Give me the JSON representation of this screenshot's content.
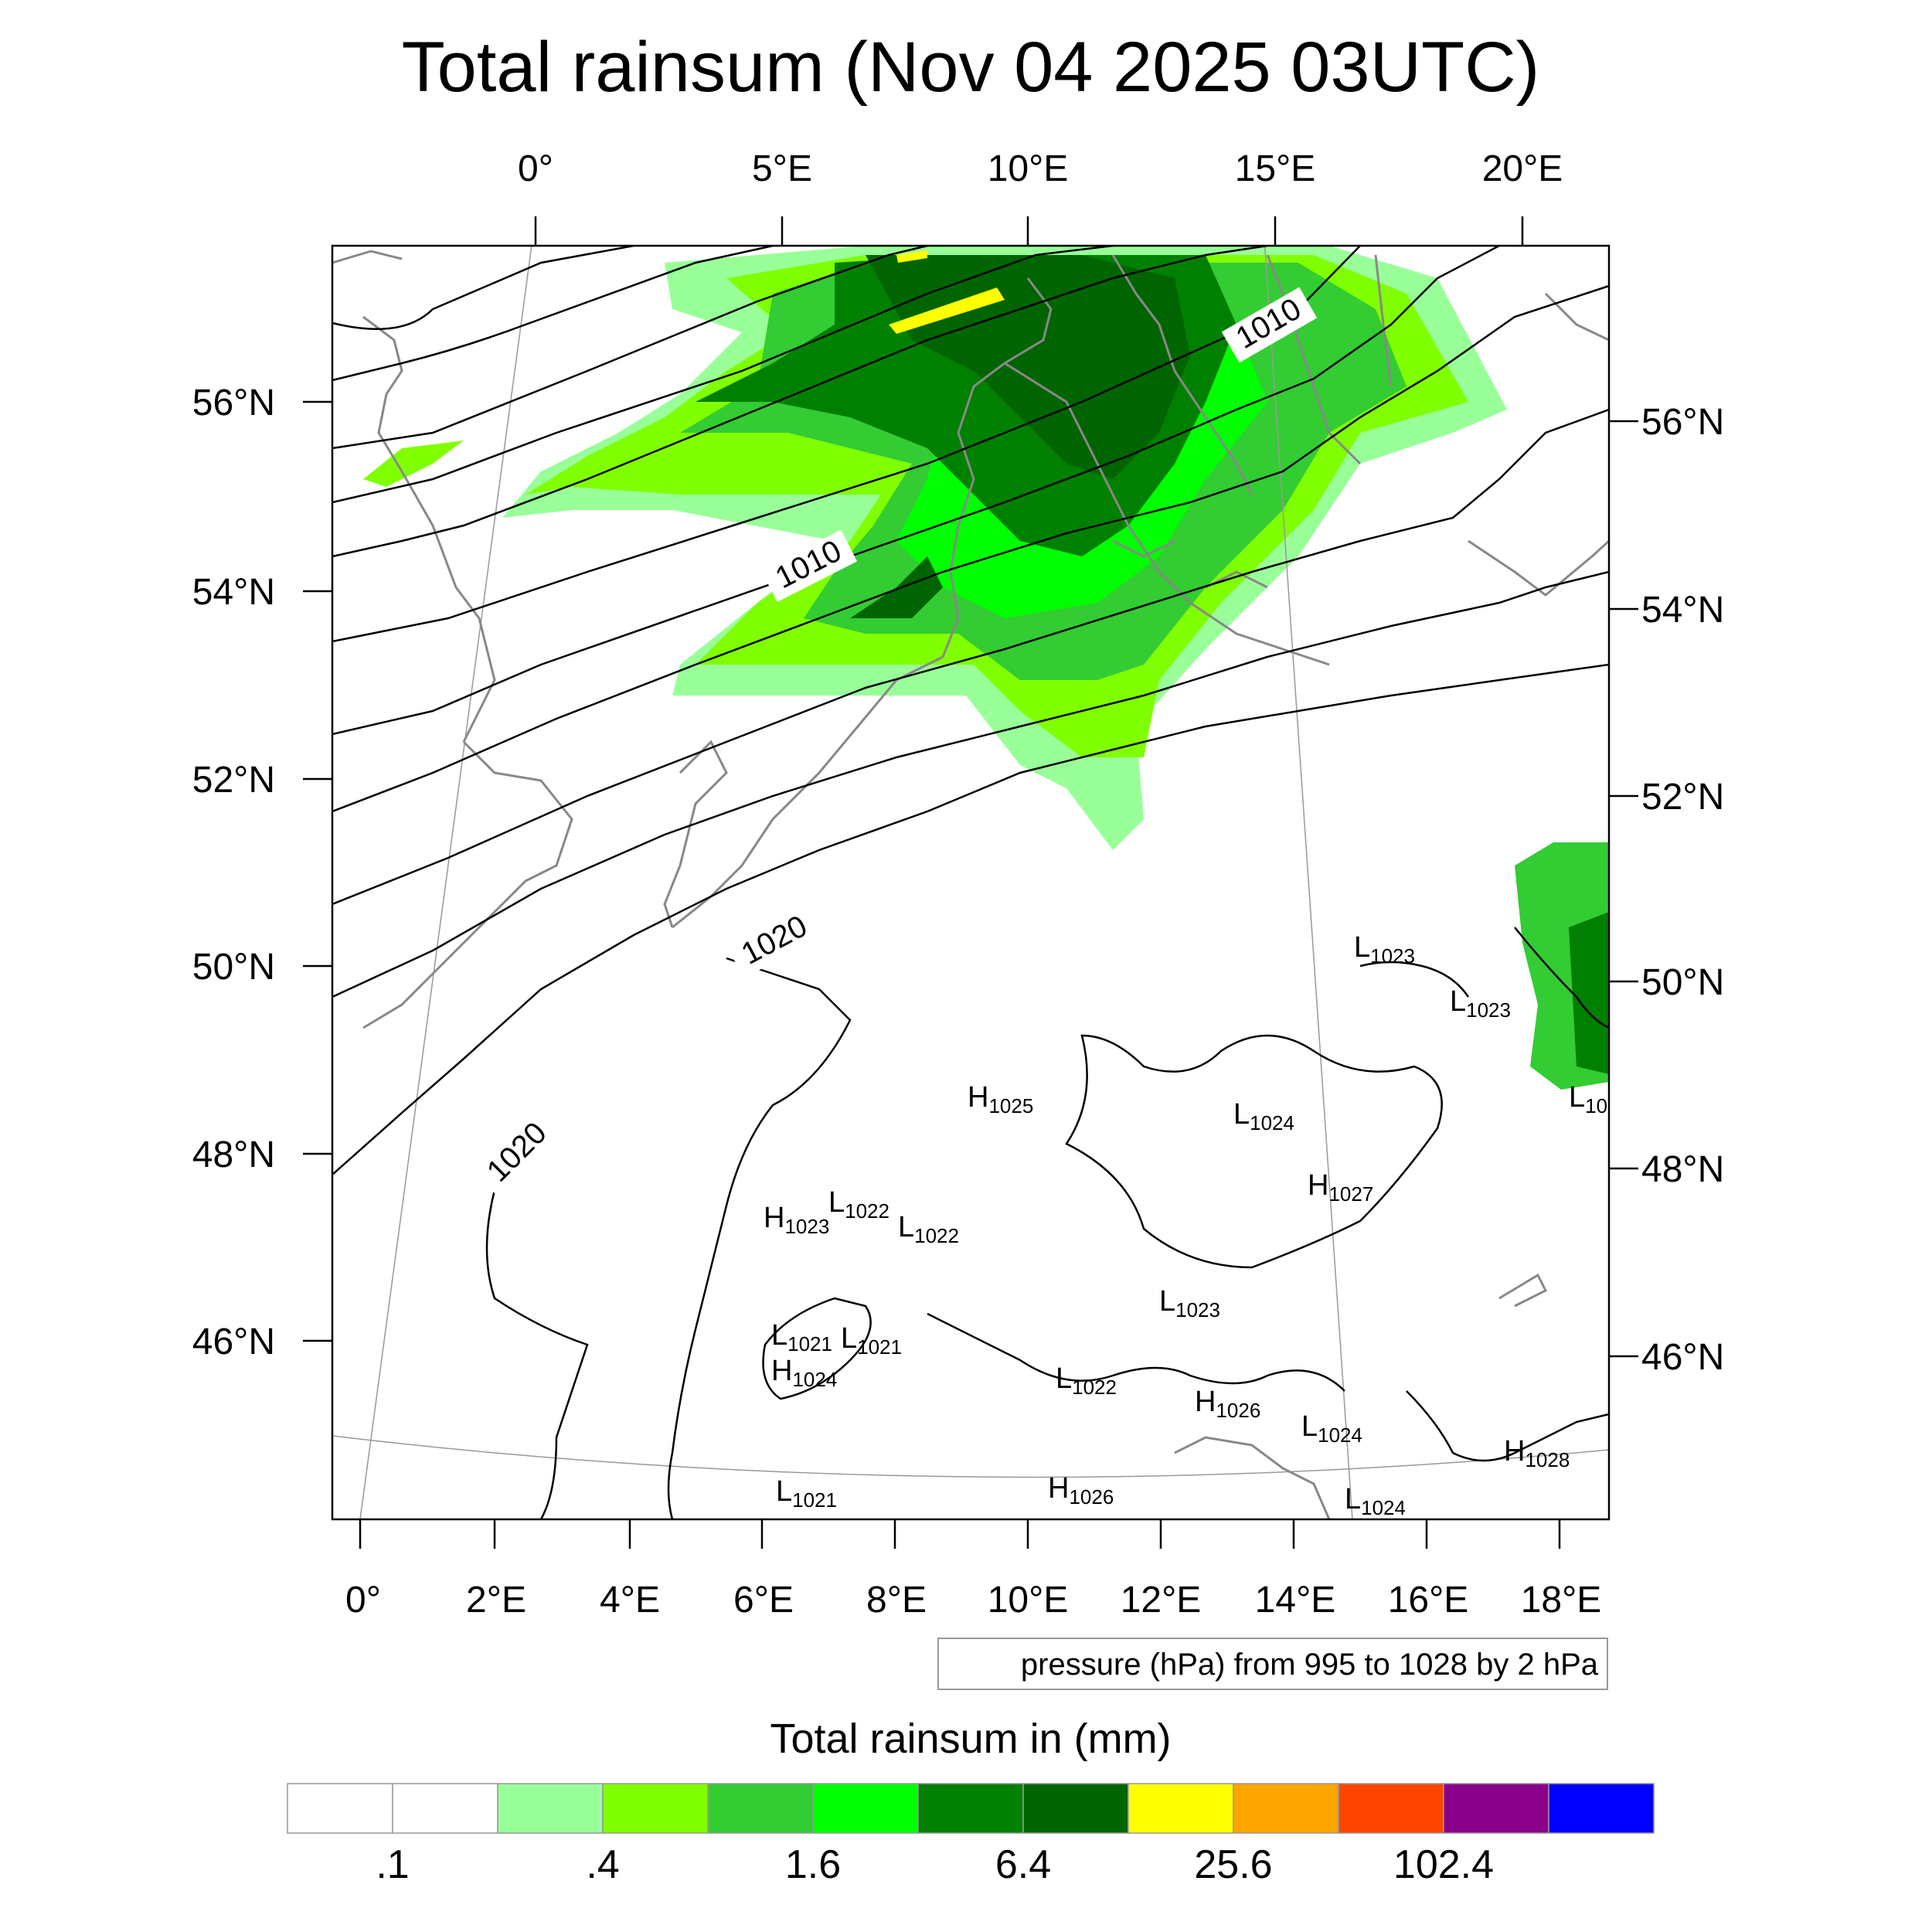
{
  "title": "Total rainsum (Nov 04 2025 03UTC)",
  "map": {
    "top_lon_labels": [
      "0°",
      "5°E",
      "10°E",
      "15°E",
      "20°E"
    ],
    "bottom_lon_labels": [
      "0°",
      "2°E",
      "4°E",
      "6°E",
      "8°E",
      "10°E",
      "12°E",
      "14°E",
      "16°E",
      "18°E"
    ],
    "left_lat_labels": [
      "56°N",
      "54°N",
      "52°N",
      "50°N",
      "48°N",
      "46°N"
    ],
    "right_lat_labels": [
      "56°N",
      "54°N",
      "52°N",
      "50°N",
      "48°N",
      "46°N"
    ],
    "contour_labels": [
      "1010",
      "1010",
      "1020",
      "1020"
    ],
    "pressure_centers": [
      {
        "type": "L",
        "value": "1023"
      },
      {
        "type": "L",
        "value": "1023"
      },
      {
        "type": "L",
        "value": "10"
      },
      {
        "type": "H",
        "value": "1025"
      },
      {
        "type": "L",
        "value": "1024"
      },
      {
        "type": "H",
        "value": "1027"
      },
      {
        "type": "H",
        "value": "1023"
      },
      {
        "type": "L",
        "value": "1022"
      },
      {
        "type": "L",
        "value": "1022"
      },
      {
        "type": "L",
        "value": "1023"
      },
      {
        "type": "L",
        "value": "1021"
      },
      {
        "type": "L",
        "value": "1021"
      },
      {
        "type": "H",
        "value": "1024"
      },
      {
        "type": "L",
        "value": "1022"
      },
      {
        "type": "H",
        "value": "1026"
      },
      {
        "type": "L",
        "value": "1024"
      },
      {
        "type": "H",
        "value": "1028"
      },
      {
        "type": "L",
        "value": "1021"
      },
      {
        "type": "H",
        "value": "1026"
      },
      {
        "type": "L",
        "value": "1024"
      }
    ],
    "info_box": "pressure (hPa) from 995 to 1028 by 2 hPa",
    "colors": {
      "coast": "#888888",
      "contour": "#000000",
      "rain": [
        "#ffffff",
        "#ffffff",
        "#99ff99",
        "#80ff00",
        "#33cc33",
        "#00ff00",
        "#008000",
        "#006400",
        "#ffff00",
        "#ffa500",
        "#ff4500",
        "#8b008b",
        "#0000ff"
      ]
    }
  },
  "colorbar": {
    "title": "Total rainsum in (mm)",
    "labels": [
      ".1",
      ".4",
      "1.6",
      "6.4",
      "25.6",
      "102.4"
    ],
    "colors": [
      "#ffffff",
      "#ffffff",
      "#99ff99",
      "#80ff00",
      "#33cc33",
      "#00ff00",
      "#008000",
      "#006400",
      "#ffff00",
      "#ffa500",
      "#ff4500",
      "#8b008b",
      "#0000ff"
    ]
  }
}
